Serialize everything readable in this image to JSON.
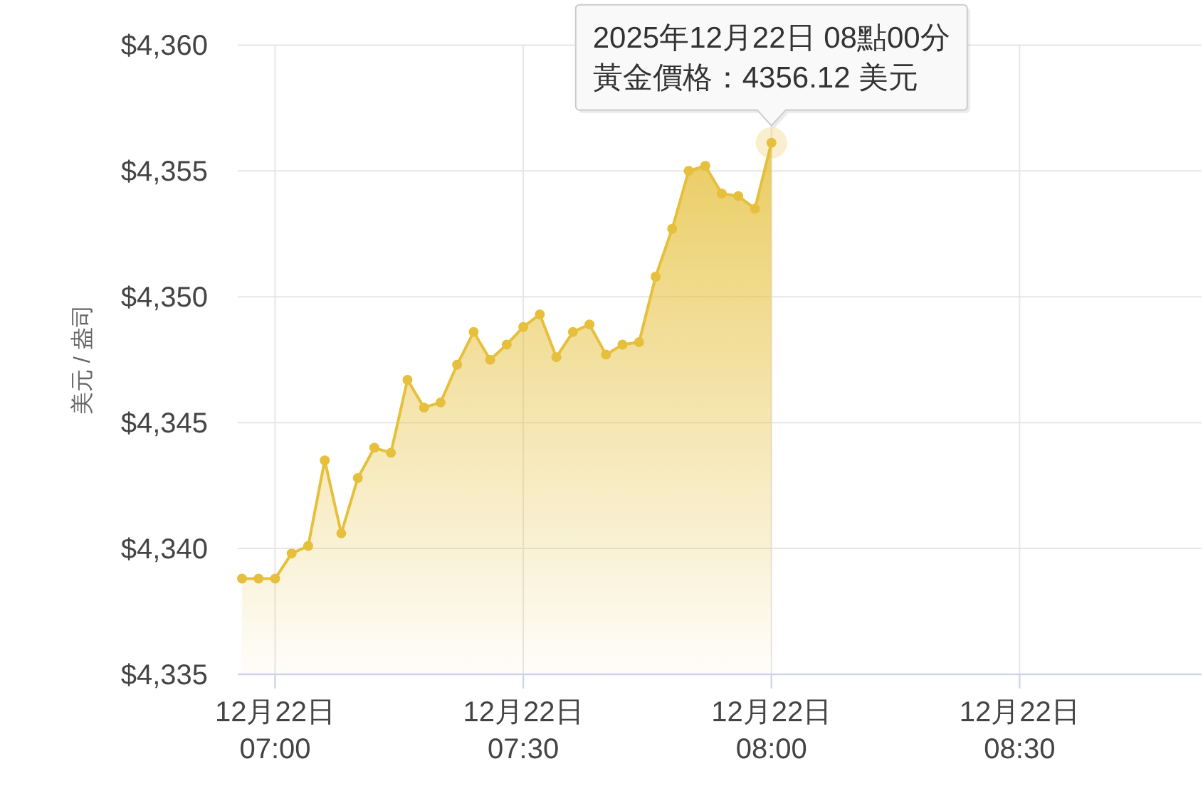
{
  "chart_data": {
    "type": "area",
    "ylabel": "美元 / 盎司",
    "x": [
      "2025-12-22T06:56",
      "2025-12-22T06:58",
      "2025-12-22T07:00",
      "2025-12-22T07:02",
      "2025-12-22T07:04",
      "2025-12-22T07:06",
      "2025-12-22T07:08",
      "2025-12-22T07:10",
      "2025-12-22T07:12",
      "2025-12-22T07:14",
      "2025-12-22T07:16",
      "2025-12-22T07:18",
      "2025-12-22T07:20",
      "2025-12-22T07:22",
      "2025-12-22T07:24",
      "2025-12-22T07:26",
      "2025-12-22T07:28",
      "2025-12-22T07:30",
      "2025-12-22T07:32",
      "2025-12-22T07:34",
      "2025-12-22T07:36",
      "2025-12-22T07:38",
      "2025-12-22T07:40",
      "2025-12-22T07:42",
      "2025-12-22T07:44",
      "2025-12-22T07:46",
      "2025-12-22T07:48",
      "2025-12-22T07:50",
      "2025-12-22T07:52",
      "2025-12-22T07:54",
      "2025-12-22T07:56",
      "2025-12-22T07:58",
      "2025-12-22T08:00"
    ],
    "series": [
      {
        "color": "#e6c03c",
        "values": [
          4338.8,
          4338.8,
          4338.8,
          4339.8,
          4340.1,
          4343.5,
          4340.6,
          4342.8,
          4344.0,
          4343.8,
          4346.7,
          4345.6,
          4345.8,
          4347.3,
          4348.6,
          4347.5,
          4348.1,
          4348.8,
          4349.3,
          4347.6,
          4348.6,
          4348.9,
          4347.7,
          4348.1,
          4348.2,
          4350.8,
          4352.7,
          4355.0,
          4355.2,
          4354.1,
          4354.0,
          4353.5,
          4356.12
        ]
      }
    ],
    "xlim": [
      "2025-12-22T06:56",
      "2025-12-22T08:52"
    ],
    "xticks": [
      {
        "value": "2025-12-22T07:00",
        "label": "12月22日\n07:00"
      },
      {
        "value": "2025-12-22T07:30",
        "label": "12月22日\n07:30"
      },
      {
        "value": "2025-12-22T08:00",
        "label": "12月22日\n08:00"
      },
      {
        "value": "2025-12-22T08:30",
        "label": "12月22日\n08:30"
      }
    ],
    "ylim": [
      4335,
      4360
    ],
    "yticks": [
      {
        "value": 4335,
        "label": "$4,335"
      },
      {
        "value": 4340,
        "label": "$4,340"
      },
      {
        "value": 4345,
        "label": "$4,345"
      },
      {
        "value": 4350,
        "label": "$4,350"
      },
      {
        "value": 4355,
        "label": "$4,355"
      },
      {
        "value": 4360,
        "label": "$4,360"
      }
    ],
    "grid": true,
    "marker": "circle",
    "annotations": [
      {
        "text": "2025年12月22日 08點00分",
        "x": "2025-12-22T08:00",
        "y": 4356.12
      },
      {
        "text": "黃金價格：4356.12 美元",
        "x": "2025-12-22T08:00",
        "y": 4356.12
      }
    ]
  }
}
